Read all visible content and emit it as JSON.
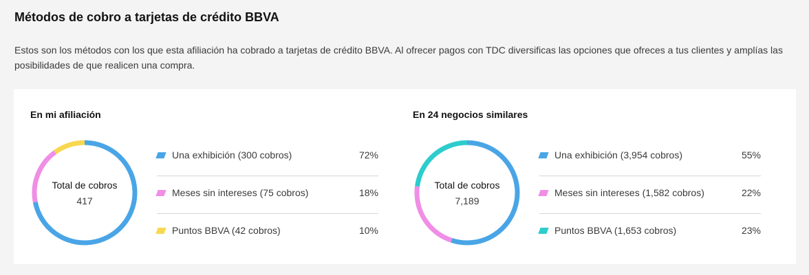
{
  "header": {
    "title": "Métodos de cobro a tarjetas de crédito BBVA",
    "description": "Estos son los métodos con los que esta afiliación ha cobrado a tarjetas de crédito BBVA.  Al ofrecer pagos con TDC diversificas las opciones que ofreces a tus clientes y amplías las posibilidades de que realicen una compra."
  },
  "chart_data": [
    {
      "type": "pie",
      "title": "En mi afiliación",
      "center_label": "Total de cobros",
      "center_value": "417",
      "slices": [
        {
          "label": "Una exhibición (300 cobros)",
          "value": 72,
          "pct": "72%",
          "color": "#49a5e6"
        },
        {
          "label": "Meses sin intereses (75 cobros)",
          "value": 18,
          "pct": "18%",
          "color": "#f08ee5"
        },
        {
          "label": "Puntos BBVA (42 cobros)",
          "value": 10,
          "pct": "10%",
          "color": "#f7d84f"
        }
      ]
    },
    {
      "type": "pie",
      "title": "En 24 negocios similares",
      "center_label": "Total de cobros",
      "center_value": "7,189",
      "slices": [
        {
          "label": "Una exhibición (3,954 cobros)",
          "value": 55,
          "pct": "55%",
          "color": "#49a5e6"
        },
        {
          "label": "Meses sin intereses (1,582 cobros)",
          "value": 22,
          "pct": "22%",
          "color": "#f08ee5"
        },
        {
          "label": "Puntos BBVA (1,653 cobros)",
          "value": 23,
          "pct": "23%",
          "color": "#2dcccd"
        }
      ]
    }
  ]
}
